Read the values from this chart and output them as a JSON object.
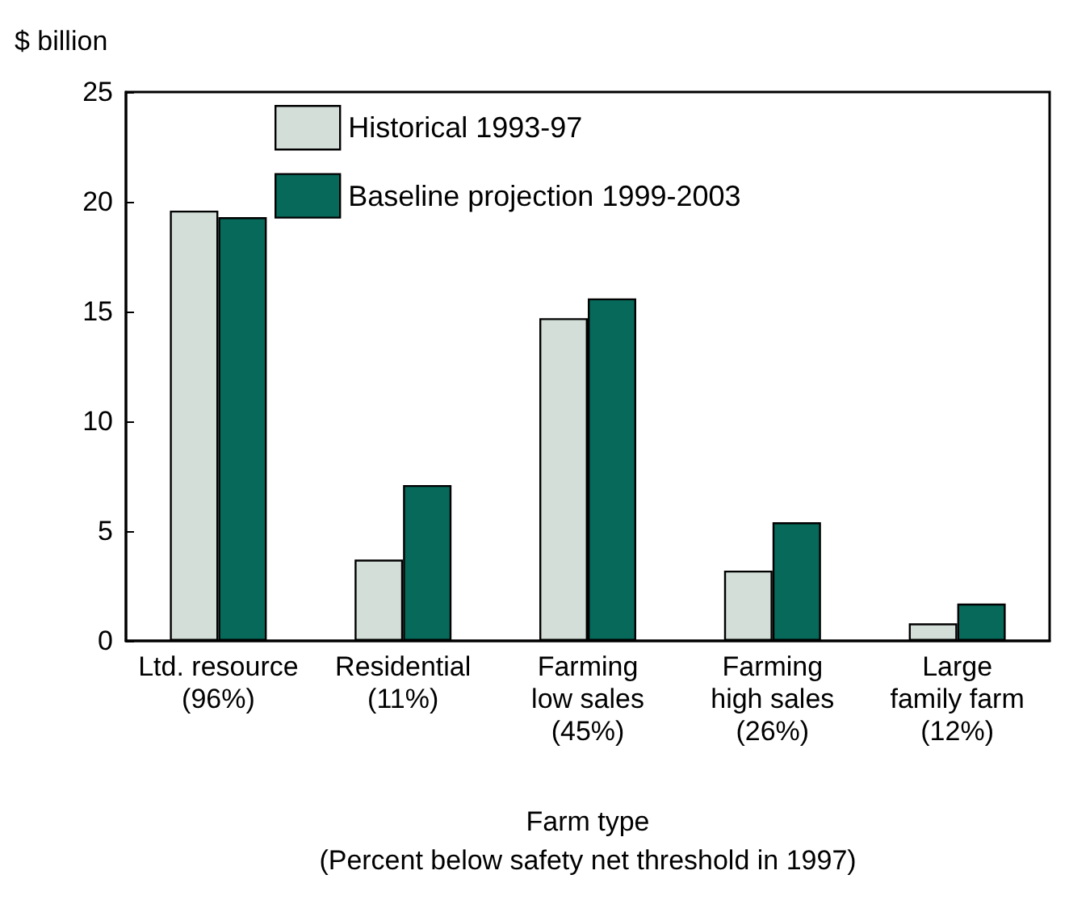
{
  "chart_data": {
    "type": "bar",
    "ylabel": "$ billion",
    "xlabel": "Farm type\n(Percent below safety net threshold in 1997)",
    "categories": [
      "Ltd. resource\n(96%)",
      "Residential\n(11%)",
      "Farming\nlow sales\n(45%)",
      "Farming\nhigh sales\n(26%)",
      "Large\nfamily farm\n(12%)"
    ],
    "series": [
      {
        "name": "Historical 1993-97",
        "color": "#d3ded9",
        "values": [
          19.6,
          3.7,
          14.7,
          3.2,
          0.8
        ]
      },
      {
        "name": "Baseline projection 1999-2003",
        "color": "#06695a",
        "values": [
          19.3,
          7.1,
          15.6,
          5.4,
          1.7
        ]
      }
    ],
    "ylim": [
      0,
      25
    ],
    "yticks": [
      0,
      5,
      10,
      15,
      20,
      25
    ],
    "grid": false,
    "legend": "top left"
  }
}
